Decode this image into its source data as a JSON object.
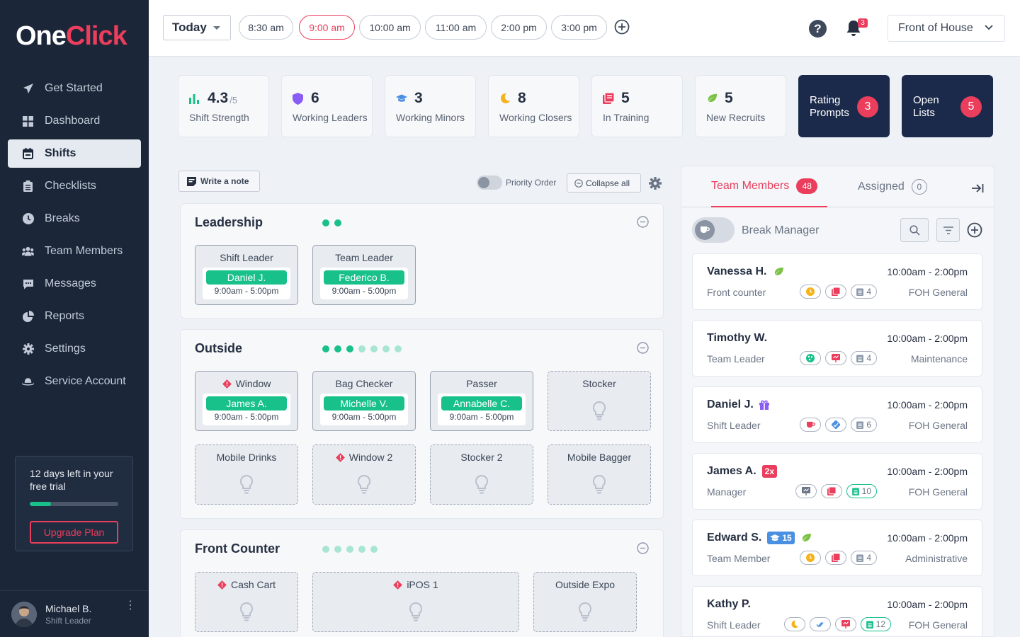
{
  "brand": {
    "logo_a": "One",
    "logo_b": "Click"
  },
  "nav": [
    {
      "label": "Get Started",
      "icon": "send-icon"
    },
    {
      "label": "Dashboard",
      "icon": "grid-icon"
    },
    {
      "label": "Shifts",
      "icon": "calendar-icon",
      "active": true
    },
    {
      "label": "Checklists",
      "icon": "clipboard-icon"
    },
    {
      "label": "Breaks",
      "icon": "clock-icon"
    },
    {
      "label": "Team Members",
      "icon": "people-icon"
    },
    {
      "label": "Messages",
      "icon": "chat-icon"
    },
    {
      "label": "Reports",
      "icon": "pie-chart-icon"
    },
    {
      "label": "Settings",
      "icon": "gear-icon"
    },
    {
      "label": "Service Account",
      "icon": "hat-icon"
    }
  ],
  "trial": {
    "text": "12 days left in your free trial",
    "progress": 0.24,
    "button": "Upgrade Plan"
  },
  "user": {
    "name": "Michael B.",
    "role": "Shift Leader"
  },
  "topbar": {
    "day": "Today",
    "times": [
      "8:30 am",
      "9:00 am",
      "10:00 am",
      "11:00 am",
      "2:00 pm",
      "3:00 pm"
    ],
    "active_time": "9:00 am",
    "notifications": "3",
    "location": "Front of House"
  },
  "stats": [
    {
      "value": "4.3",
      "sub": "/5",
      "label": "Shift Strength",
      "icon": "bar-chart-icon"
    },
    {
      "value": "6",
      "label": "Working Leaders",
      "icon": "shield-icon"
    },
    {
      "value": "3",
      "label": "Working Minors",
      "icon": "graduation-cap-icon"
    },
    {
      "value": "8",
      "label": "Working Closers",
      "icon": "moon-icon"
    },
    {
      "value": "5",
      "label": "In Training",
      "icon": "book-icon"
    },
    {
      "value": "5",
      "label": "New Recruits",
      "icon": "leaf-icon"
    }
  ],
  "actions": [
    {
      "label_1": "Rating",
      "label_2": "Prompts",
      "count": "3"
    },
    {
      "label_1": "Open",
      "label_2": "Lists",
      "count": "5"
    }
  ],
  "toolbar": {
    "note": "Write a note",
    "priority": "Priority Order",
    "collapse": "Collapse all"
  },
  "sections": [
    {
      "title": "Leadership",
      "slots": [
        {
          "role": "Shift Leader",
          "name": "Daniel J.",
          "time": "9:00am - 5:00pm"
        },
        {
          "role": "Team Leader",
          "name": "Federico B.",
          "time": "9:00am - 5:00pm"
        }
      ]
    },
    {
      "title": "Outside",
      "slots": [
        {
          "role": "Window",
          "name": "James A.",
          "time": "9:00am - 5:00pm",
          "warn": true
        },
        {
          "role": "Bag Checker",
          "name": "Michelle V.",
          "time": "9:00am - 5:00pm"
        },
        {
          "role": "Passer",
          "name": "Annabelle C.",
          "time": "9:00am - 5:00pm"
        },
        {
          "role": "Stocker"
        },
        {
          "role": "Mobile Drinks"
        },
        {
          "role": "Window 2",
          "warn": true
        },
        {
          "role": "Stocker 2"
        },
        {
          "role": "Mobile Bagger"
        }
      ]
    },
    {
      "title": "Front Counter",
      "slots": [
        {
          "role": "Cash Cart",
          "warn": true
        },
        {
          "role": "iPOS 1",
          "warn": true
        },
        {
          "role": "Outside Expo"
        }
      ]
    }
  ],
  "panel": {
    "tab_members": "Team Members",
    "members_count": "48",
    "tab_assigned": "Assigned",
    "assigned_count": "0",
    "break_manager": "Break Manager",
    "members": [
      {
        "name": "Vanessa H.",
        "role": "Front counter",
        "time": "10:00am - 2:00pm",
        "dept": "FOH General",
        "tag_count": "4"
      },
      {
        "name": "Timothy W.",
        "role": "Team Leader",
        "time": "10:00am - 2:00pm",
        "dept": "Maintenance",
        "tag_count": "4"
      },
      {
        "name": "Daniel J.",
        "role": "Shift Leader",
        "time": "10:00am - 2:00pm",
        "dept": "FOH General",
        "tag_count": "6"
      },
      {
        "name": "James A.",
        "role": "Manager",
        "time": "10:00am - 2:00pm",
        "dept": "FOH General",
        "tag_count": "10",
        "badge": "2x"
      },
      {
        "name": "Edward S.",
        "role": "Team Member",
        "time": "10:00am - 2:00pm",
        "dept": "Administrative",
        "tag_count": "4",
        "badge": "15"
      },
      {
        "name": "Kathy P.",
        "role": "Shift Leader",
        "time": "10:00am - 2:00pm",
        "dept": "FOH General",
        "tag_count": "12"
      }
    ]
  },
  "colors": {
    "accent": "#ea3e5c",
    "green": "#18c08a",
    "navy": "#1b2638",
    "dark_card": "#1b2a4a"
  }
}
